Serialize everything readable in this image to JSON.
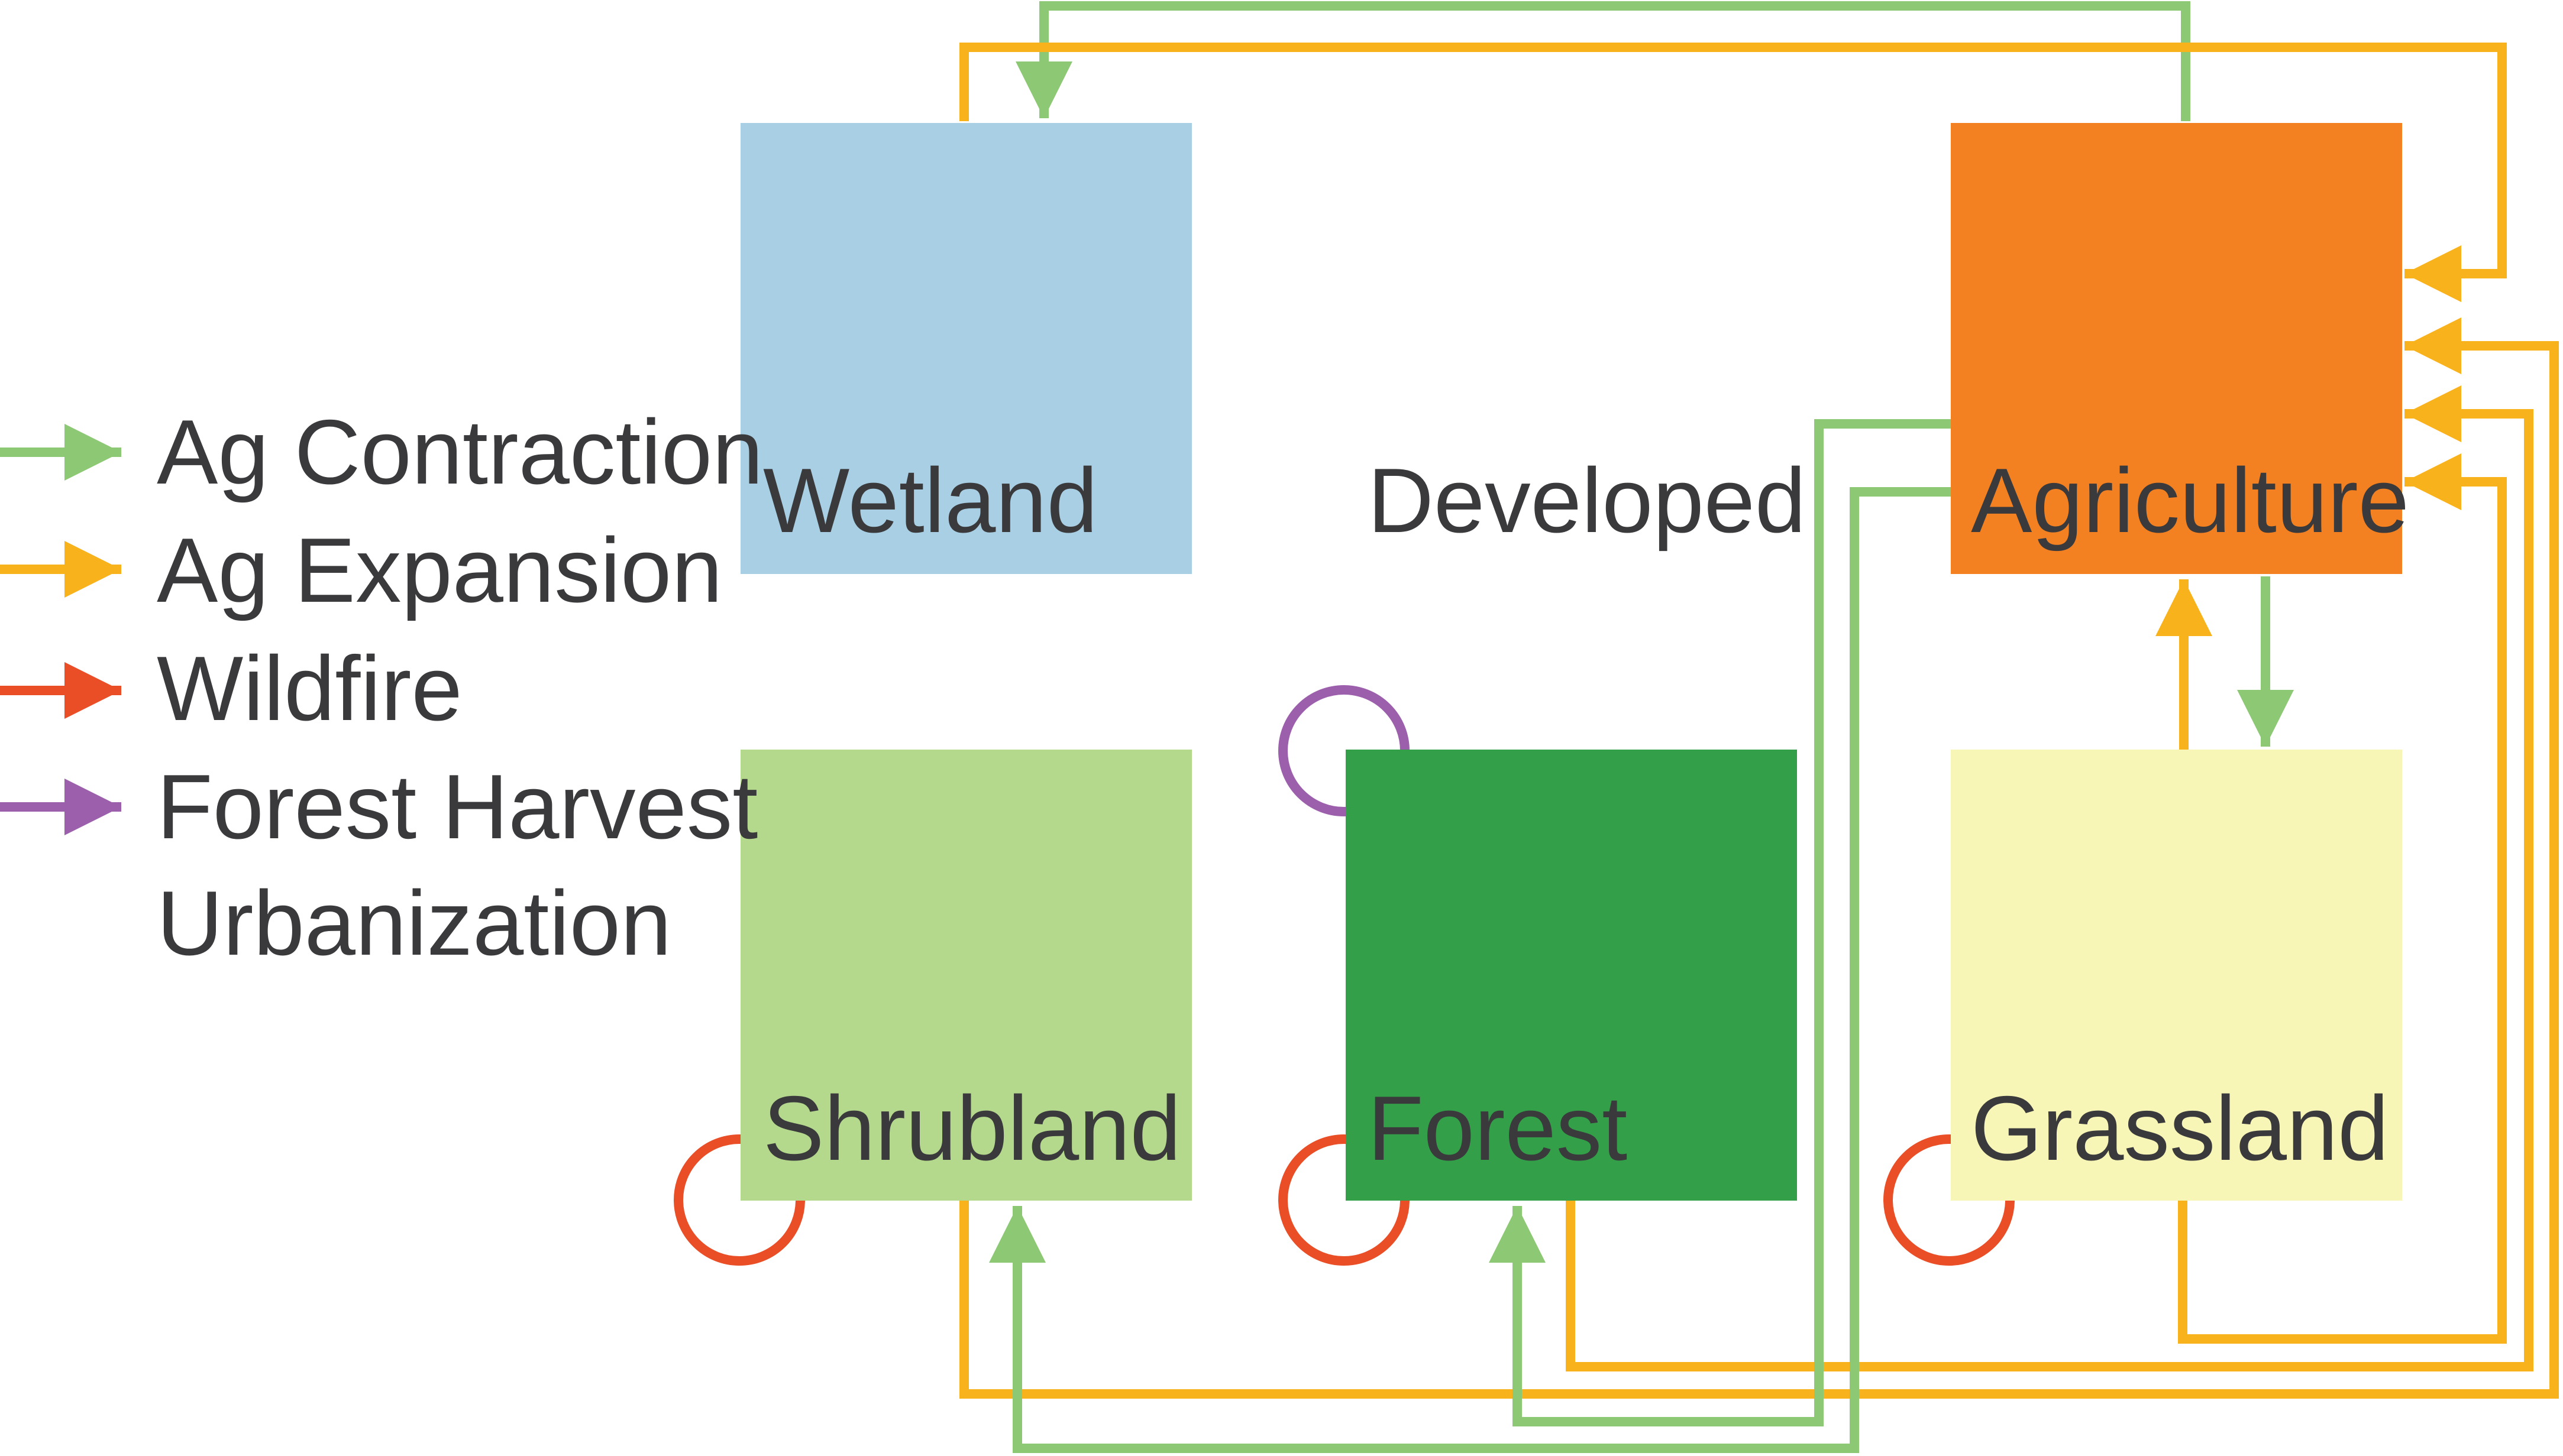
{
  "legend": {
    "ag_contraction": "Ag Contraction",
    "ag_expansion": "Ag Expansion",
    "wildfire": "Wildfire",
    "forest_harvest": "Forest Harvest",
    "urbanization": "Urbanization"
  },
  "nodes": {
    "wetland": "Wetland",
    "developed": "Developed",
    "agriculture": "Agriculture",
    "shrubland": "Shrubland",
    "forest": "Forest",
    "grassland": "Grassland"
  },
  "colors": {
    "ag_contraction": "#8dc975",
    "ag_expansion": "#f8b21c",
    "wildfire": "#e94e27",
    "forest_harvest": "#9c5fac",
    "wetland": "#a8cfe3",
    "agriculture": "#f38121",
    "shrubland": "#b4d98c",
    "forest": "#33a049",
    "grassland": "#f8f6b7",
    "text": "#3a3a3c"
  }
}
